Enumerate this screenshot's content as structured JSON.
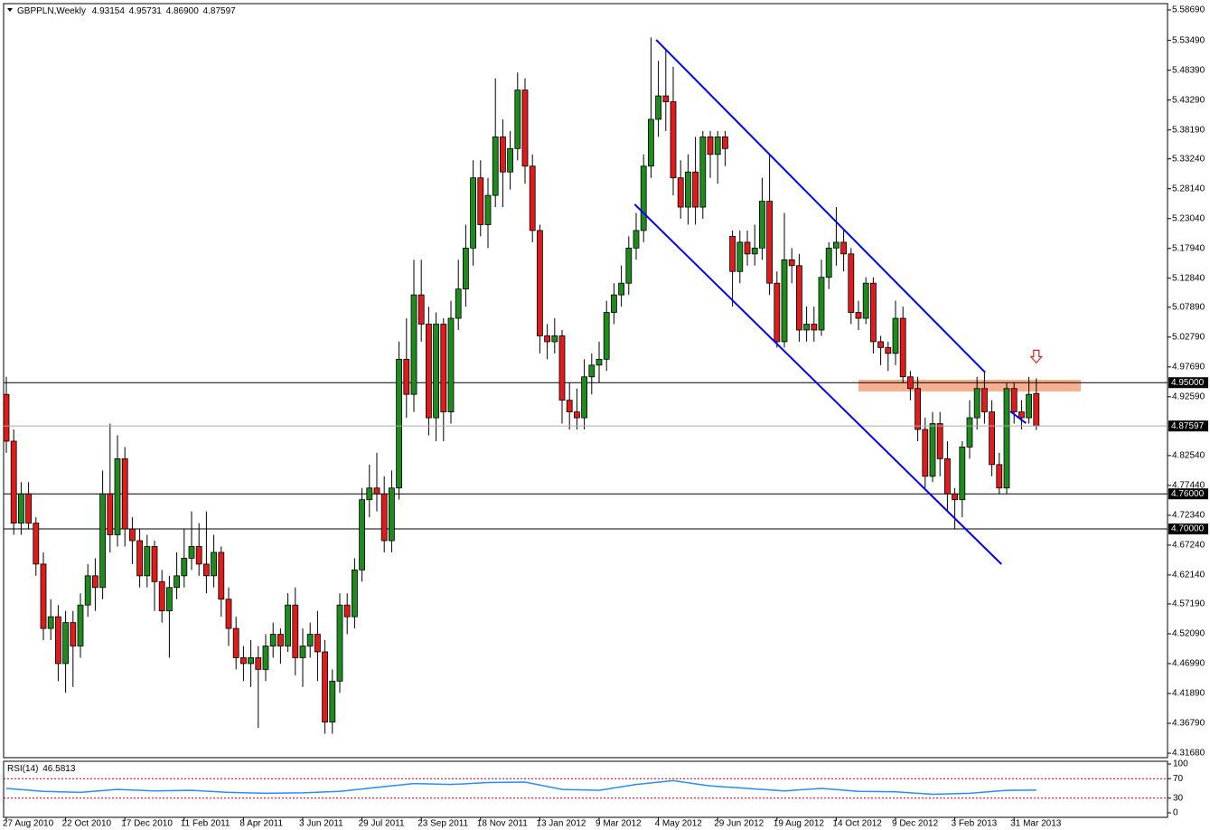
{
  "chart_data": {
    "type": "candlestick",
    "symbol": "GBPPLN,Weekly",
    "ohlc_labels": [
      "4.93154",
      "4.95731",
      "4.86900",
      "4.87597"
    ],
    "open": [
      4.93,
      4.85,
      4.71,
      4.76,
      4.71,
      4.64,
      4.53,
      4.55,
      4.47,
      4.54,
      4.5,
      4.57,
      4.62,
      4.6,
      4.76,
      4.69,
      4.82,
      4.7,
      4.68,
      4.62,
      4.67,
      4.61,
      4.56,
      4.6,
      4.62,
      4.65,
      4.67,
      4.64,
      4.62,
      4.66,
      4.58,
      4.53,
      4.48,
      4.47,
      4.48,
      4.46,
      4.5,
      4.52,
      4.5,
      4.57,
      4.48,
      4.5,
      4.52,
      4.49,
      4.37,
      4.44,
      4.57,
      4.55,
      4.63,
      4.75,
      4.77,
      4.76,
      4.68,
      4.77,
      4.99,
      4.93,
      5.1,
      5.05,
      4.89,
      5.05,
      4.9,
      5.06,
      5.11,
      5.18,
      5.3,
      5.22,
      5.27,
      5.37,
      5.31,
      5.35,
      5.45,
      5.32,
      5.21,
      5.03,
      5.02,
      5.03,
      4.92,
      4.9,
      4.89,
      4.96,
      4.98,
      4.99,
      5.07,
      5.1,
      5.12,
      5.18,
      5.21,
      5.32,
      5.4,
      5.44,
      5.43,
      5.3,
      5.25,
      5.31,
      5.25,
      5.37,
      5.34,
      5.37,
      5.2,
      5.14,
      5.19,
      5.17,
      5.18,
      5.26,
      5.12,
      5.02,
      5.16,
      5.15,
      5.04,
      5.05,
      5.04,
      5.13,
      5.18,
      5.19,
      5.17,
      5.07,
      5.06,
      5.12,
      5.02,
      5.01,
      5.0,
      5.06,
      4.96,
      4.94,
      4.87,
      4.79,
      4.88,
      4.82,
      4.76,
      4.75,
      4.84,
      4.89,
      4.94,
      4.9,
      4.81,
      4.77,
      4.94,
      4.9,
      4.89,
      4.93154
    ],
    "high": [
      4.96,
      4.87,
      4.78,
      4.78,
      4.72,
      4.66,
      4.58,
      4.57,
      4.56,
      4.56,
      4.59,
      4.64,
      4.65,
      4.8,
      4.88,
      4.86,
      4.84,
      4.72,
      4.7,
      4.69,
      4.68,
      4.63,
      4.62,
      4.66,
      4.7,
      4.73,
      4.71,
      4.73,
      4.69,
      4.67,
      4.6,
      4.55,
      4.5,
      4.51,
      4.5,
      4.52,
      4.54,
      4.53,
      4.59,
      4.6,
      4.53,
      4.54,
      4.56,
      4.51,
      4.46,
      4.59,
      4.59,
      4.65,
      4.77,
      4.81,
      4.83,
      4.79,
      4.8,
      5.02,
      5.06,
      5.16,
      5.16,
      5.08,
      5.07,
      5.06,
      5.09,
      5.16,
      5.22,
      5.33,
      5.33,
      5.3,
      5.47,
      5.4,
      5.38,
      5.48,
      5.47,
      5.34,
      5.22,
      5.05,
      5.06,
      5.04,
      4.95,
      4.94,
      4.99,
      5.0,
      5.02,
      5.09,
      5.12,
      5.15,
      5.2,
      5.24,
      5.34,
      5.54,
      5.5,
      5.52,
      5.49,
      5.33,
      5.34,
      5.37,
      5.38,
      5.38,
      5.38,
      5.38,
      5.21,
      5.21,
      5.21,
      5.22,
      5.3,
      5.34,
      5.14,
      5.24,
      5.18,
      5.17,
      5.08,
      5.08,
      5.16,
      5.19,
      5.25,
      5.21,
      5.18,
      5.09,
      5.13,
      5.13,
      5.03,
      5.02,
      5.09,
      5.08,
      4.97,
      4.96,
      4.89,
      4.9,
      4.9,
      4.85,
      4.77,
      4.85,
      4.92,
      4.96,
      4.97,
      4.92,
      4.83,
      4.95,
      4.95,
      4.92,
      4.96,
      4.95731
    ],
    "low": [
      4.83,
      4.69,
      4.69,
      4.7,
      4.62,
      4.51,
      4.51,
      4.44,
      4.42,
      4.43,
      4.48,
      4.55,
      4.56,
      4.58,
      4.66,
      4.67,
      4.67,
      4.64,
      4.6,
      4.6,
      4.56,
      4.54,
      4.48,
      4.58,
      4.6,
      4.63,
      4.62,
      4.59,
      4.6,
      4.55,
      4.5,
      4.46,
      4.44,
      4.43,
      4.36,
      4.44,
      4.48,
      4.47,
      4.49,
      4.45,
      4.43,
      4.48,
      4.44,
      4.35,
      4.35,
      4.42,
      4.52,
      4.53,
      4.61,
      4.72,
      4.73,
      4.66,
      4.66,
      4.75,
      4.89,
      4.9,
      5.02,
      4.86,
      4.85,
      4.85,
      4.88,
      5.04,
      5.08,
      5.15,
      5.2,
      5.18,
      5.25,
      5.25,
      5.28,
      5.33,
      5.29,
      5.19,
      5.0,
      4.99,
      5.0,
      4.88,
      4.87,
      4.87,
      4.87,
      4.93,
      4.95,
      4.97,
      5.05,
      5.08,
      5.1,
      5.16,
      5.19,
      5.3,
      5.37,
      5.38,
      5.27,
      5.23,
      5.22,
      5.22,
      5.23,
      5.3,
      5.29,
      5.32,
      5.08,
      5.12,
      5.15,
      5.15,
      5.16,
      5.1,
      5.01,
      5.01,
      5.12,
      5.02,
      5.02,
      5.02,
      5.03,
      5.11,
      5.15,
      5.14,
      5.05,
      5.04,
      5.05,
      5.0,
      4.98,
      4.97,
      4.98,
      4.95,
      4.92,
      4.85,
      4.77,
      4.78,
      4.79,
      4.73,
      4.7,
      4.72,
      4.82,
      4.87,
      4.88,
      4.79,
      4.76,
      4.76,
      4.88,
      4.87,
      4.88,
      4.869
    ],
    "close": [
      4.85,
      4.71,
      4.76,
      4.71,
      4.64,
      4.53,
      4.55,
      4.47,
      4.54,
      4.5,
      4.57,
      4.62,
      4.6,
      4.76,
      4.69,
      4.82,
      4.7,
      4.68,
      4.62,
      4.67,
      4.61,
      4.56,
      4.6,
      4.62,
      4.65,
      4.67,
      4.64,
      4.62,
      4.66,
      4.58,
      4.53,
      4.48,
      4.47,
      4.48,
      4.46,
      4.5,
      4.52,
      4.5,
      4.57,
      4.48,
      4.5,
      4.52,
      4.49,
      4.37,
      4.44,
      4.57,
      4.55,
      4.63,
      4.75,
      4.77,
      4.76,
      4.68,
      4.77,
      4.99,
      4.93,
      5.1,
      5.05,
      4.89,
      5.05,
      4.9,
      5.06,
      5.11,
      5.18,
      5.3,
      5.22,
      5.27,
      5.37,
      5.31,
      5.35,
      5.45,
      5.32,
      5.21,
      5.03,
      5.02,
      5.03,
      4.92,
      4.9,
      4.89,
      4.96,
      4.98,
      4.99,
      5.07,
      5.1,
      5.12,
      5.18,
      5.21,
      5.32,
      5.4,
      5.44,
      5.43,
      5.3,
      5.25,
      5.31,
      5.25,
      5.37,
      5.34,
      5.37,
      5.35,
      5.14,
      5.19,
      5.17,
      5.18,
      5.26,
      5.12,
      5.02,
      5.16,
      5.15,
      5.04,
      5.05,
      5.04,
      5.13,
      5.18,
      5.19,
      5.17,
      5.07,
      5.06,
      5.12,
      5.02,
      5.01,
      5.0,
      5.06,
      4.96,
      4.94,
      4.87,
      4.79,
      4.88,
      4.82,
      4.76,
      4.75,
      4.84,
      4.89,
      4.94,
      4.9,
      4.81,
      4.77,
      4.94,
      4.9,
      4.89,
      4.93,
      4.87597
    ],
    "up_color": "#1f8b1f",
    "down_color": "#e01b1b",
    "ylim": [
      4.3092,
      5.5977
    ],
    "yticks": [
      {
        "value": 5.5869,
        "label": "5.58690"
      },
      {
        "value": 5.5349,
        "label": "5.53490"
      },
      {
        "value": 5.4839,
        "label": "5.48390"
      },
      {
        "value": 5.4329,
        "label": "5.43290"
      },
      {
        "value": 5.3819,
        "label": "5.38190"
      },
      {
        "value": 5.3324,
        "label": "5.33240"
      },
      {
        "value": 5.2814,
        "label": "5.28140"
      },
      {
        "value": 5.2304,
        "label": "5.23040"
      },
      {
        "value": 5.1794,
        "label": "5.17940"
      },
      {
        "value": 5.1284,
        "label": "5.12840"
      },
      {
        "value": 5.0789,
        "label": "5.07890"
      },
      {
        "value": 5.0279,
        "label": "5.02790"
      },
      {
        "value": 4.9769,
        "label": "4.97690"
      },
      {
        "value": 4.9259,
        "label": "4.92590"
      },
      {
        "value": 4.8254,
        "label": "4.82540"
      },
      {
        "value": 4.7744,
        "label": "4.77440"
      },
      {
        "value": 4.7234,
        "label": "4.72340"
      },
      {
        "value": 4.6724,
        "label": "4.67240"
      },
      {
        "value": 4.6214,
        "label": "4.62140"
      },
      {
        "value": 4.5719,
        "label": "4.57190"
      },
      {
        "value": 4.5209,
        "label": "4.52090"
      },
      {
        "value": 4.4699,
        "label": "4.46990"
      },
      {
        "value": 4.4189,
        "label": "4.41890"
      },
      {
        "value": 4.3679,
        "label": "4.36790"
      },
      {
        "value": 4.3168,
        "label": "4.31680"
      }
    ],
    "xticks": [
      {
        "value": 0,
        "label": "27 Aug 2010"
      },
      {
        "value": 8,
        "label": "22 Oct 2010"
      },
      {
        "value": 16,
        "label": "17 Dec 2010"
      },
      {
        "value": 24,
        "label": "11 Feb 2011"
      },
      {
        "value": 32,
        "label": "8 Apr 2011"
      },
      {
        "value": 40,
        "label": "3 Jun 2011"
      },
      {
        "value": 48,
        "label": "29 Jul 2011"
      },
      {
        "value": 56,
        "label": "23 Sep 2011"
      },
      {
        "value": 64,
        "label": "18 Nov 2011"
      },
      {
        "value": 72,
        "label": "13 Jan 2012"
      },
      {
        "value": 80,
        "label": "9 Mar 2012"
      },
      {
        "value": 88,
        "label": "4 May 2012"
      },
      {
        "value": 96,
        "label": "29 Jun 2012"
      },
      {
        "value": 104,
        "label": "19 Aug 2012"
      },
      {
        "value": 112,
        "label": "14 Oct 2012"
      },
      {
        "value": 120,
        "label": "9 Dec 2012"
      },
      {
        "value": 128,
        "label": "3 Feb 2013"
      },
      {
        "value": 136,
        "label": "31 Mar 2013"
      }
    ],
    "levels": [
      {
        "value": 4.95,
        "label": "4.95000"
      },
      {
        "value": 4.76,
        "label": "4.76000"
      },
      {
        "value": 4.7,
        "label": "4.70000"
      }
    ],
    "zone": {
      "x": [
        115,
        145
      ],
      "y": [
        4.935,
        4.955
      ],
      "color": "#f5a27c"
    },
    "trendlines": [
      {
        "x": [
          87.7,
          132.1
        ],
        "y": [
          5.5358,
          4.9674
        ]
      },
      {
        "x": [
          84.8,
          134.3
        ],
        "y": [
          5.2547,
          4.6398
        ]
      },
      {
        "x": [
          135.5,
          137.6
        ],
        "y": [
          4.9009,
          4.8808
        ]
      }
    ],
    "trend_color": "#0000ff",
    "arrow": {
      "x": 139,
      "y": 4.99,
      "color": "#e0201c"
    },
    "rsi": {
      "title": "RSI(14)",
      "x": [
        0,
        5,
        10,
        15,
        20,
        25,
        30,
        35,
        40,
        45,
        50,
        55,
        60,
        65,
        70,
        75,
        80,
        85,
        90,
        95,
        100,
        105,
        110,
        115,
        120,
        125,
        130,
        135,
        139
      ],
      "values": [
        50,
        44,
        42,
        48,
        45,
        46,
        42,
        40,
        41,
        44,
        52,
        60,
        58,
        62,
        63,
        48,
        46,
        58,
        66,
        55,
        50,
        45,
        50,
        44,
        43,
        38,
        40,
        46,
        46.5813
      ],
      "ylim": [
        0,
        100
      ],
      "yticks": [
        100,
        70,
        30,
        0
      ],
      "levels": [
        70,
        30
      ],
      "color": "#1e90ff"
    }
  }
}
